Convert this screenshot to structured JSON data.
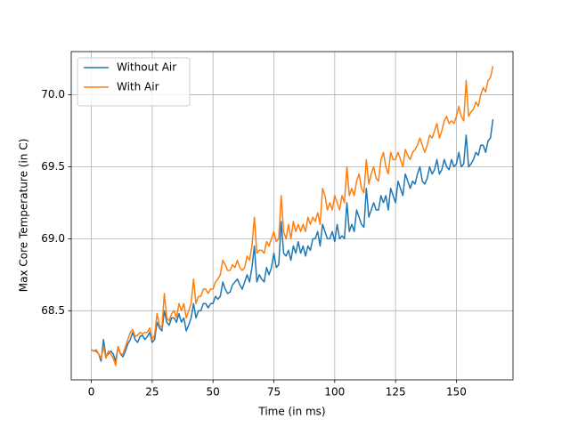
{
  "chart_data": {
    "type": "line",
    "xlabel": "Time (in ms)",
    "ylabel": "Max Core Temperature (in C)",
    "x": [
      0,
      1,
      2,
      3,
      4,
      5,
      6,
      7,
      8,
      9,
      10,
      11,
      12,
      13,
      14,
      15,
      16,
      17,
      18,
      19,
      20,
      21,
      22,
      23,
      24,
      25,
      26,
      27,
      28,
      29,
      30,
      31,
      32,
      33,
      34,
      35,
      36,
      37,
      38,
      39,
      40,
      41,
      42,
      43,
      44,
      45,
      46,
      47,
      48,
      49,
      50,
      51,
      52,
      53,
      54,
      55,
      56,
      57,
      58,
      59,
      60,
      61,
      62,
      63,
      64,
      65,
      66,
      67,
      68,
      69,
      70,
      71,
      72,
      73,
      74,
      75,
      76,
      77,
      78,
      79,
      80,
      81,
      82,
      83,
      84,
      85,
      86,
      87,
      88,
      89,
      90,
      91,
      92,
      93,
      94,
      95,
      96,
      97,
      98,
      99,
      100,
      101,
      102,
      103,
      104,
      105,
      106,
      107,
      108,
      109,
      110,
      111,
      112,
      113,
      114,
      115,
      116,
      117,
      118,
      119,
      120,
      121,
      122,
      123,
      124,
      125,
      126,
      127,
      128,
      129,
      130,
      131,
      132,
      133,
      134,
      135,
      136,
      137,
      138,
      139,
      140,
      141,
      142,
      143,
      144,
      145,
      146,
      147,
      148,
      149,
      150,
      151,
      152,
      153,
      154,
      155,
      156,
      157,
      158,
      159,
      160,
      161,
      162,
      163,
      164,
      165
    ],
    "series": [
      {
        "name": "Without Air",
        "color": "#1f77b4",
        "values": [
          68.23,
          68.22,
          68.22,
          68.2,
          68.15,
          68.3,
          68.18,
          68.2,
          68.22,
          68.2,
          68.15,
          68.25,
          68.2,
          68.18,
          68.22,
          68.27,
          68.3,
          68.35,
          68.3,
          68.28,
          68.32,
          68.33,
          68.3,
          68.32,
          68.35,
          68.28,
          68.3,
          68.42,
          68.38,
          68.36,
          68.5,
          68.42,
          68.4,
          68.45,
          68.45,
          68.42,
          68.48,
          68.42,
          68.45,
          68.36,
          68.4,
          68.45,
          68.55,
          68.45,
          68.5,
          68.5,
          68.55,
          68.55,
          68.52,
          68.55,
          68.55,
          68.6,
          68.58,
          68.6,
          68.7,
          68.65,
          68.62,
          68.63,
          68.68,
          68.7,
          68.72,
          68.68,
          68.65,
          68.7,
          68.75,
          68.7,
          68.8,
          68.95,
          68.7,
          68.75,
          68.72,
          68.7,
          68.8,
          68.75,
          68.8,
          68.9,
          68.8,
          68.82,
          69.12,
          68.9,
          68.88,
          68.92,
          68.85,
          68.95,
          68.9,
          68.98,
          68.9,
          68.95,
          68.88,
          68.95,
          68.92,
          69.0,
          69.0,
          69.05,
          68.95,
          69.1,
          69.05,
          69.0,
          69.0,
          69.05,
          68.98,
          69.1,
          69.0,
          69.02,
          69.0,
          69.25,
          69.05,
          69.1,
          69.05,
          69.2,
          69.15,
          69.1,
          69.08,
          69.35,
          69.15,
          69.2,
          69.25,
          69.2,
          69.2,
          69.3,
          69.25,
          69.3,
          69.2,
          69.35,
          69.3,
          69.25,
          69.4,
          69.35,
          69.3,
          69.45,
          69.4,
          69.35,
          69.4,
          69.38,
          69.45,
          69.5,
          69.4,
          69.38,
          69.42,
          69.5,
          69.45,
          69.48,
          69.55,
          69.45,
          69.48,
          69.55,
          69.5,
          69.48,
          69.55,
          69.5,
          69.52,
          69.6,
          69.5,
          69.52,
          69.72,
          69.5,
          69.52,
          69.55,
          69.6,
          69.58,
          69.65,
          69.65,
          69.6,
          69.68,
          69.7,
          69.83
        ]
      },
      {
        "name": "With Air",
        "color": "#ff7f0e",
        "values": [
          68.23,
          68.22,
          68.23,
          68.2,
          68.17,
          68.25,
          68.17,
          68.22,
          68.2,
          68.17,
          68.12,
          68.25,
          68.2,
          68.2,
          68.25,
          68.3,
          68.35,
          68.37,
          68.32,
          68.33,
          68.35,
          68.34,
          68.35,
          68.35,
          68.38,
          68.3,
          68.33,
          68.48,
          68.4,
          68.38,
          68.62,
          68.45,
          68.43,
          68.48,
          68.5,
          68.45,
          68.55,
          68.5,
          68.55,
          68.45,
          68.5,
          68.55,
          68.72,
          68.55,
          68.6,
          68.6,
          68.65,
          68.65,
          68.62,
          68.65,
          68.65,
          68.7,
          68.72,
          68.75,
          68.85,
          68.82,
          68.78,
          68.78,
          68.82,
          68.8,
          68.85,
          68.8,
          68.78,
          68.8,
          68.88,
          68.85,
          68.95,
          69.15,
          68.9,
          68.92,
          68.92,
          68.9,
          68.98,
          68.95,
          69.0,
          69.05,
          68.98,
          69.0,
          69.3,
          69.05,
          69.0,
          69.1,
          69.0,
          69.12,
          69.05,
          69.1,
          69.05,
          69.1,
          69.05,
          69.15,
          69.1,
          69.15,
          69.12,
          69.18,
          69.1,
          69.35,
          69.3,
          69.2,
          69.25,
          69.2,
          69.3,
          69.25,
          69.2,
          69.3,
          69.25,
          69.5,
          69.3,
          69.35,
          69.3,
          69.4,
          69.45,
          69.35,
          69.32,
          69.55,
          69.38,
          69.45,
          69.5,
          69.42,
          69.4,
          69.55,
          69.6,
          69.5,
          69.45,
          69.6,
          69.55,
          69.55,
          69.6,
          69.55,
          69.5,
          69.62,
          69.58,
          69.55,
          69.6,
          69.62,
          69.65,
          69.7,
          69.65,
          69.6,
          69.65,
          69.72,
          69.7,
          69.75,
          69.8,
          69.7,
          69.75,
          69.82,
          69.85,
          69.8,
          69.82,
          69.8,
          69.85,
          69.92,
          69.85,
          69.82,
          70.1,
          69.85,
          69.88,
          69.9,
          69.95,
          69.92,
          70.0,
          70.05,
          70.02,
          70.1,
          70.12,
          70.2
        ]
      }
    ],
    "xlim": [
      -8.25,
      173.25
    ],
    "xticks": [
      0,
      25,
      50,
      75,
      100,
      125,
      150
    ],
    "ylim": [
      68.02,
      70.3
    ],
    "yticks": [
      68.5,
      {
        "value": 69.0,
        "label": "69.0"
      },
      69.5,
      {
        "value": 70.0,
        "label": "70.0"
      }
    ],
    "grid": true,
    "legend": "upper left"
  }
}
